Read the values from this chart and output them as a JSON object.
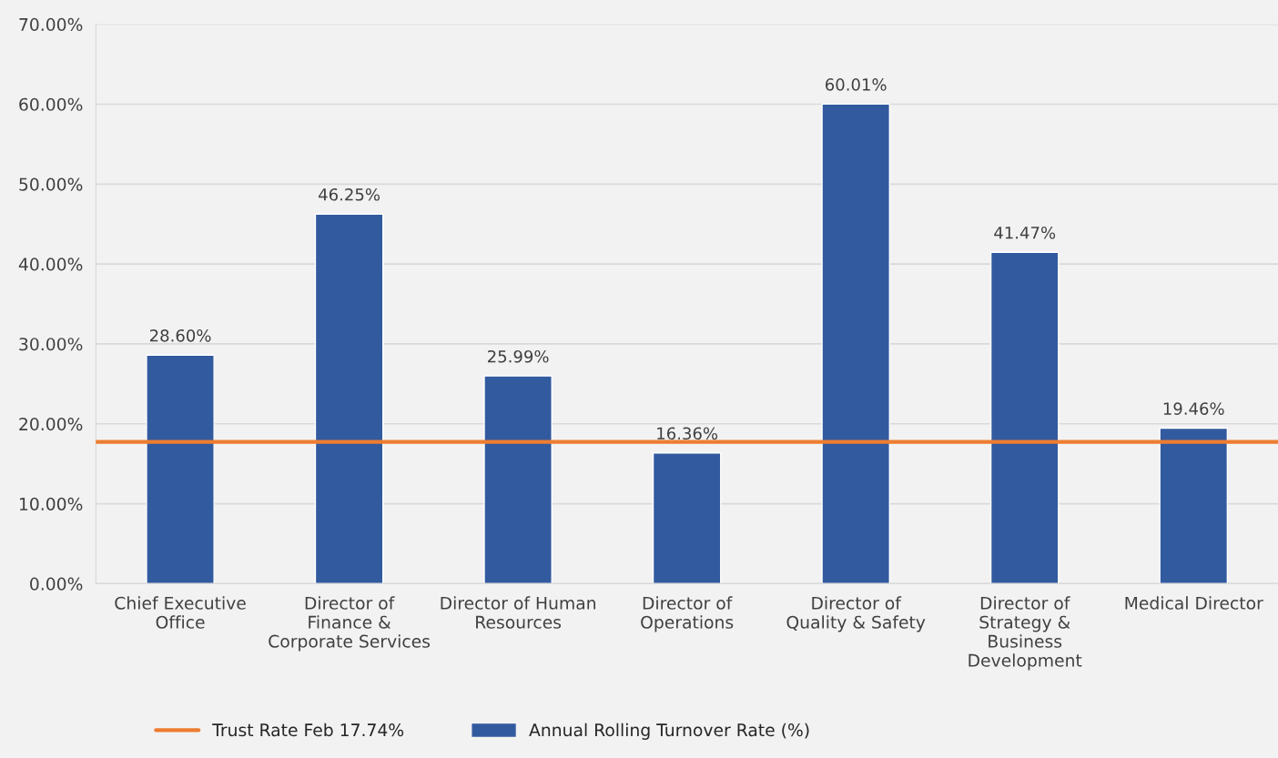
{
  "chart_data": {
    "type": "bar",
    "categories": [
      "Chief Executive Office",
      "Director of Finance & Corporate Services",
      "Director of Human Resources",
      "Director of Operations",
      "Director of Quality & Safety",
      "Director of Strategy & Business Development",
      "Medical Director"
    ],
    "series": [
      {
        "name": "Annual Rolling Turnover Rate (%)",
        "color": "#325a9f",
        "values": [
          28.6,
          46.25,
          25.99,
          16.36,
          60.01,
          41.47,
          19.46
        ],
        "value_labels": [
          "28.60%",
          "46.25%",
          "25.99%",
          "16.36%",
          "60.01%",
          "41.47%",
          "19.46%"
        ]
      }
    ],
    "ylim": [
      0,
      70
    ],
    "yticks": [
      {
        "value": 0,
        "label": "0.00%"
      },
      {
        "value": 10,
        "label": "10.00%"
      },
      {
        "value": 20,
        "label": "20.00%"
      },
      {
        "value": 30,
        "label": "30.00%"
      },
      {
        "value": 40,
        "label": "40.00%"
      },
      {
        "value": 50,
        "label": "50.00%"
      },
      {
        "value": 60,
        "label": "60.00%"
      },
      {
        "value": 70,
        "label": "70.00%"
      }
    ],
    "ref_lines": [
      {
        "axis": "y",
        "value": 17.74,
        "label": "Trust Rate Feb 17.74%",
        "color": "#ed7d31"
      }
    ],
    "grid": "y",
    "legend": "bottom"
  }
}
